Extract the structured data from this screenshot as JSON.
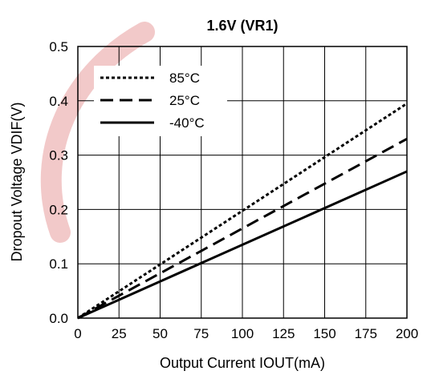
{
  "chart_data": {
    "type": "line",
    "title": "1.6V (VR1)",
    "xlabel": "Output Current IOUT(mA)",
    "ylabel": "Dropout Voltage VDIF(V)",
    "xlim": [
      0,
      200
    ],
    "ylim": [
      0,
      0.5
    ],
    "x_ticks": [
      "0",
      "25",
      "50",
      "75",
      "100",
      "125",
      "150",
      "175",
      "200"
    ],
    "y_ticks": [
      "0.0",
      "0.1",
      "0.2",
      "0.3",
      "0.4",
      "0.5"
    ],
    "grid": true,
    "legend_position": "top-left",
    "series": [
      {
        "name": "85°C",
        "line_style": "dotted",
        "x": [
          0,
          200
        ],
        "y": [
          0,
          0.395
        ]
      },
      {
        "name": "25°C",
        "line_style": "dashed",
        "x": [
          0,
          200
        ],
        "y": [
          0,
          0.33
        ]
      },
      {
        "name": "-40°C",
        "line_style": "solid",
        "x": [
          0,
          200
        ],
        "y": [
          0,
          0.27
        ]
      }
    ],
    "line_color": "#000000",
    "watermark_color": "#f2c9c9"
  }
}
